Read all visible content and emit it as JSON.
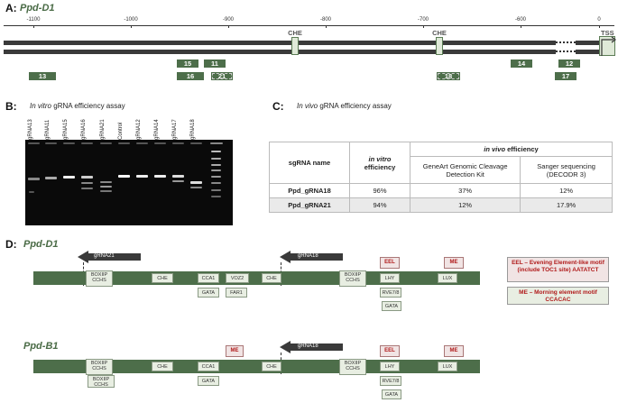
{
  "panelA": {
    "letter": "A:",
    "gene": "Ppd-D1",
    "ticks": [
      "-1100",
      "-1000",
      "-900",
      "-800",
      "-700",
      "-600",
      "0"
    ],
    "che_labels": [
      "CHE",
      "CHE"
    ],
    "tss": "TSS",
    "guides_top": [
      "15",
      "11",
      "14",
      "12"
    ],
    "guides_bottom": [
      "13",
      "16",
      "21",
      "18",
      "17"
    ]
  },
  "panelB": {
    "letter": "B:",
    "title_italic": "In vitro",
    "title_rest": " gRNA efficiency assay",
    "lanes": [
      "gRNA13",
      "gRNA11",
      "gRNA15",
      "gRNA16",
      "gRNA21",
      "Control",
      "gRNA12",
      "gRNA14",
      "gRNA17",
      "gRNA18"
    ]
  },
  "panelC": {
    "letter": "C:",
    "title_italic": "In vivo",
    "title_rest": " gRNA efficiency assay",
    "header": {
      "sgrna": "sgRNA name",
      "invitro_italic": "in vitro",
      "invitro_rest": "efficiency",
      "invivo_italic": "in vivo",
      "invivo_rest": " efficiency",
      "geneart": "GeneArt Genomic Cleavage Detection Kit",
      "sanger": "Sanger sequencing (DECODR 3)"
    },
    "rows": [
      {
        "name": "Ppd_gRNA18",
        "invitro": "96%",
        "geneart": "37%",
        "sanger": "12%"
      },
      {
        "name": "Ppd_gRNA21",
        "invitro": "94%",
        "geneart": "12%",
        "sanger": "17.9%"
      }
    ]
  },
  "panelD": {
    "letter": "D:",
    "gene1": "Ppd-D1",
    "gene2": "Ppd-B1",
    "arrow1a": "gRNA21",
    "arrow1b": "gRNA18",
    "arrow2": "gRNA18",
    "elements": {
      "boxiip": "BOXIIP CCHS",
      "che": "CHE",
      "cca1": "CCA1",
      "voz2": "VOZ2",
      "gata": "GATA",
      "far1": "FAR1",
      "lhy": "LHY",
      "rve": "RVE7/8",
      "lux": "LUX",
      "eel": "EEL",
      "me": "ME"
    },
    "legend_eel": "EEL – Evening Element-like motif (include TOC1 site) AATATCT",
    "legend_me": "ME – Morning element motif CCACAC"
  }
}
